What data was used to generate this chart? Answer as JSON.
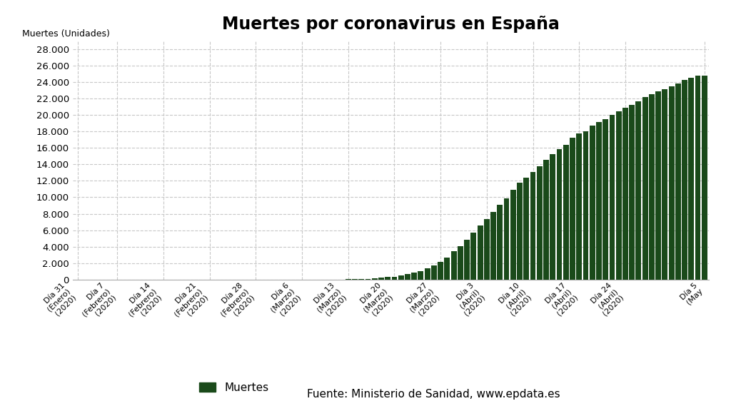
{
  "title": "Muertes por coronavirus en España",
  "ylabel": "Muertes (Unidades)",
  "bar_color": "#1a4a1a",
  "background_color": "#ffffff",
  "grid_color": "#c8c8c8",
  "ylim": [
    0,
    29000
  ],
  "yticks": [
    0,
    2000,
    4000,
    6000,
    8000,
    10000,
    12000,
    14000,
    16000,
    18000,
    20000,
    22000,
    24000,
    26000,
    28000
  ],
  "legend_label": "Muertes",
  "legend_source": "Fuente: Ministerio de Sanidad, www.epdata.es",
  "tick_positions": [
    0,
    6,
    13,
    20,
    27,
    34,
    41,
    48,
    55,
    62,
    69,
    76,
    83,
    95
  ],
  "tick_labels": [
    "Día 31\n(Enero)\n(2020)",
    "Día 7\n(Febrero)\n(2020)",
    "Día 14\n(Febrero)\n(2020)",
    "Día 21\n(Febrero)\n(2020)",
    "Día 28\n(Febrero)\n(2020)",
    "Día 6\n(Marzo)\n(2020)",
    "Día 13\n(Marzo)\n(2020)",
    "Día 20\n(Marzo)\n(2020)",
    "Día 27\n(Marzo)\n(2020)",
    "Día 3\n(Abril)\n(2020)",
    "Día 10\n(Abril)\n(2020)",
    "Día 17\n(Abril)\n(2020)",
    "Día 24\n(Abril)\n(2020)",
    "Día 5\n(May"
  ],
  "values": [
    0,
    0,
    0,
    0,
    0,
    0,
    0,
    0,
    0,
    0,
    0,
    0,
    0,
    0,
    0,
    0,
    0,
    0,
    0,
    0,
    0,
    0,
    0,
    0,
    0,
    0,
    0,
    0,
    0,
    0,
    0,
    0,
    0,
    0,
    0,
    0,
    0,
    0,
    0,
    0,
    0,
    17,
    28,
    54,
    84,
    120,
    195,
    288,
    342,
    491,
    638,
    803,
    978,
    1326,
    1720,
    2182,
    2696,
    3434,
    4089,
    4858,
    5690,
    6528,
    7340,
    8189,
    9053,
    9850,
    10935,
    11744,
    12418,
    13055,
    13798,
    14555,
    15238,
    15843,
    16353,
    17209,
    17756,
    18056,
    18708,
    19130,
    19478,
    20002,
    20453,
    20852,
    21282,
    21717,
    22157,
    22524,
    22902,
    23190,
    23521,
    23822,
    24275,
    24543,
    24824,
    24824
  ]
}
